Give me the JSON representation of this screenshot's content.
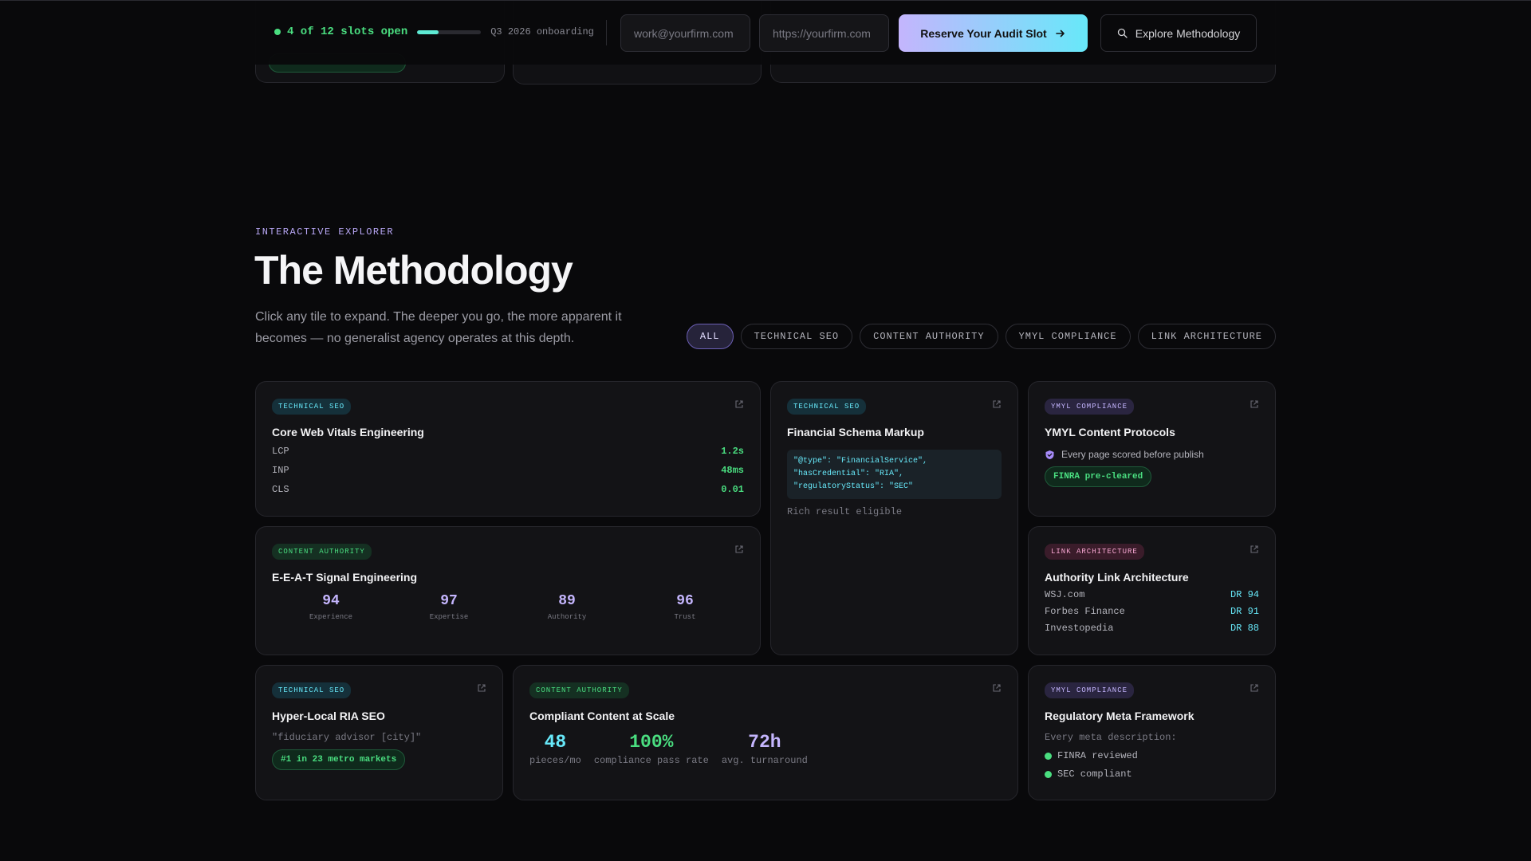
{
  "colors": {
    "background": "#09090b",
    "accent_green": "#4ade80",
    "accent_cyan": "#67e8f9",
    "accent_violet": "#c4b5fd",
    "accent_pink": "#f9a8d4"
  },
  "topbar": {
    "slots_label": "4 of 12 slots open",
    "slots_fraction": 0.33,
    "onboarding": "Q3 2026 onboarding",
    "email_placeholder": "work@yourfirm.com",
    "url_placeholder": "https://yourfirm.com",
    "cta_label": "Reserve Your Audit Slot",
    "cta_icon": "arrow-right-icon",
    "explore_label": "Explore Methodology",
    "explore_icon": "search-icon"
  },
  "section": {
    "eyebrow": "INTERACTIVE EXPLORER",
    "title": "The Methodology",
    "intro": "Click any tile to expand. The deeper you go, the more apparent it becomes — no generalist agency operates at this depth."
  },
  "filters": [
    "ALL",
    "TECHNICAL SEO",
    "CONTENT AUTHORITY",
    "YMYL COMPLIANCE",
    "LINK ARCHITECTURE"
  ],
  "tiles": {
    "cwv": {
      "tag": "TECHNICAL SEO",
      "title": "Core Web Vitals Engineering",
      "metrics": [
        {
          "k": "LCP",
          "v": "1.2s"
        },
        {
          "k": "INP",
          "v": "48ms"
        },
        {
          "k": "CLS",
          "v": "0.01"
        }
      ]
    },
    "schema": {
      "tag": "TECHNICAL SEO",
      "title": "Financial Schema Markup",
      "code": [
        "\"@type\": \"FinancialService\",",
        "\"hasCredential\": \"RIA\",",
        "\"regulatoryStatus\": \"SEC\""
      ],
      "note": "Rich result eligible"
    },
    "ymyl": {
      "tag": "YMYL COMPLIANCE",
      "title": "YMYL Content Protocols",
      "line": "Every page scored before publish",
      "badge": "FINRA pre-cleared"
    },
    "eeat": {
      "tag": "CONTENT AUTHORITY",
      "title": "E-E-A-T Signal Engineering",
      "scores": [
        {
          "num": "94",
          "lbl": "Experience"
        },
        {
          "num": "97",
          "lbl": "Expertise"
        },
        {
          "num": "89",
          "lbl": "Authority"
        },
        {
          "num": "96",
          "lbl": "Trust"
        }
      ]
    },
    "links": {
      "tag": "LINK ARCHITECTURE",
      "title": "Authority Link Architecture",
      "rows": [
        {
          "k": "WSJ.com",
          "v": "DR 94"
        },
        {
          "k": "Forbes Finance",
          "v": "DR 91"
        },
        {
          "k": "Investopedia",
          "v": "DR 88"
        }
      ]
    },
    "local": {
      "tag": "TECHNICAL SEO",
      "title": "Hyper-Local RIA SEO",
      "query": "\"fiduciary advisor [city]\"",
      "badge": "#1 in 23 metro markets"
    },
    "content": {
      "tag": "CONTENT AUTHORITY",
      "title": "Compliant Content at Scale",
      "stats": [
        {
          "num": "48",
          "lbl": "pieces/mo",
          "color": "#67e8f9"
        },
        {
          "num": "100%",
          "lbl": "compliance pass rate",
          "color": "#4ade80"
        },
        {
          "num": "72h",
          "lbl": "avg. turnaround",
          "color": "#c4b5fd"
        }
      ]
    },
    "meta": {
      "tag": "YMYL COMPLIANCE",
      "title": "Regulatory Meta Framework",
      "lead": "Every meta description:",
      "bullets": [
        "FINRA reviewed",
        "SEC compliant"
      ]
    }
  }
}
